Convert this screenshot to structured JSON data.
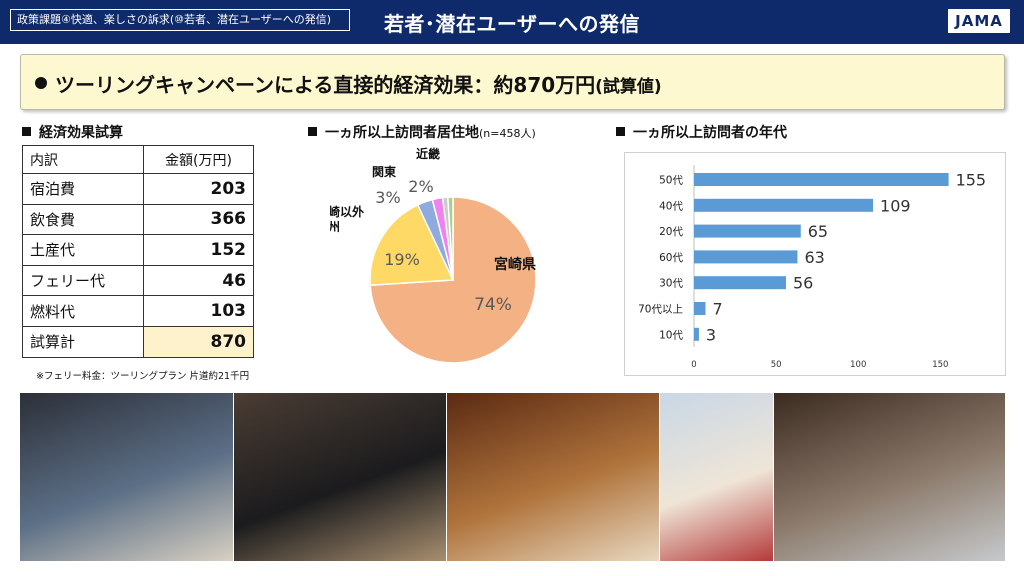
{
  "header": {
    "tag": "政策課題④快適、楽しさの訴求(⑩若者、潜在ユーザーへの発信)",
    "title": "若者･潜在ユーザーへの発信",
    "logo": "JAMA"
  },
  "headline": {
    "main": "ツーリングキャンペーンによる直接的経済効果：約870万円",
    "suffix": "(試算値)"
  },
  "cost_table": {
    "title": "経済効果試算",
    "header": [
      "内訳",
      "金額(万円)"
    ],
    "rows": [
      {
        "label": "宿泊費",
        "value": "203"
      },
      {
        "label": "飲食費",
        "value": "366"
      },
      {
        "label": "土産代",
        "value": "152"
      },
      {
        "label": "フェリー代",
        "value": "46"
      },
      {
        "label": "燃料代",
        "value": "103"
      },
      {
        "label": "試算計",
        "value": "870"
      }
    ],
    "note": "※フェリー料金：ツーリングプラン 片道約21千円"
  },
  "chart_data": [
    {
      "type": "pie",
      "title": "一ヵ所以上訪問者居住地",
      "subtitle": "(n=458人)",
      "slices": [
        {
          "label": "宮崎県",
          "value": 74,
          "display": "74%",
          "color": "#f4b183"
        },
        {
          "label": "宮崎以外\n九州",
          "value": 19,
          "display": "19%",
          "color": "#ffd966"
        },
        {
          "label": "関東",
          "value": 3,
          "display": "3%",
          "color": "#8faadc"
        },
        {
          "label": "近畿",
          "value": 2,
          "display": "2%",
          "color": "#ee82ee"
        },
        {
          "label": "",
          "value": 1,
          "display": "",
          "color": "#c9c9c9"
        },
        {
          "label": "",
          "value": 1,
          "display": "",
          "color": "#a9d18e"
        }
      ]
    },
    {
      "type": "bar",
      "orientation": "horizontal",
      "title": "一ヵ所以上訪問者の年代",
      "categories": [
        "50代",
        "40代",
        "20代",
        "60代",
        "30代",
        "70代以上",
        "10代"
      ],
      "values": [
        155,
        109,
        65,
        63,
        56,
        7,
        3
      ],
      "xlim": [
        0,
        165
      ],
      "xticks": [
        0,
        50,
        100,
        150
      ],
      "color": "#5b9bd5",
      "grid": false
    }
  ],
  "photos": [
    {
      "name": "poster-photo",
      "colors": [
        "#2c2f38",
        "#5c6f86",
        "#d8d0c2"
      ]
    },
    {
      "name": "motorcycle-photo",
      "colors": [
        "#4a3d34",
        "#1b1b1d",
        "#a88e6f"
      ]
    },
    {
      "name": "food-photo",
      "colors": [
        "#5a2a12",
        "#b0743c",
        "#e8d8c0"
      ]
    },
    {
      "name": "palm-tree-photo",
      "colors": [
        "#c9d7e6",
        "#efe5d7",
        "#b43a3a"
      ]
    },
    {
      "name": "drinks-photo",
      "colors": [
        "#3b2a1f",
        "#8c7b6c",
        "#c6c9cc"
      ]
    }
  ]
}
